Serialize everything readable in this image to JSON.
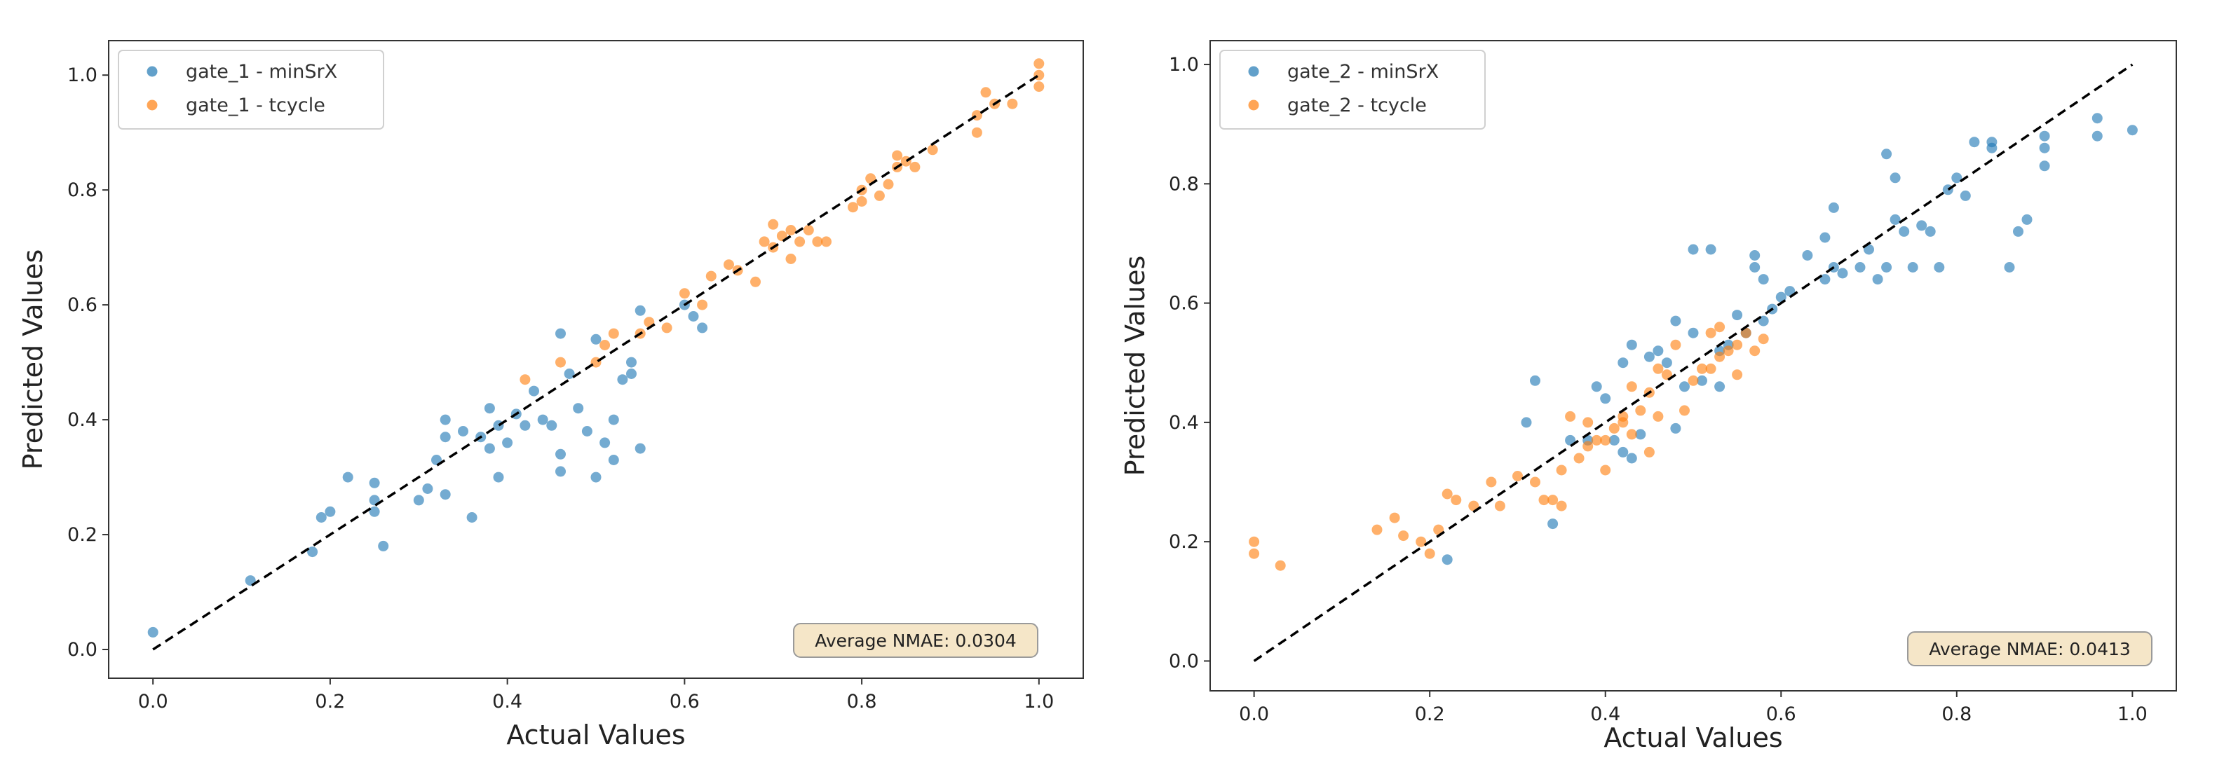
{
  "chart_data": [
    {
      "type": "scatter",
      "xlabel": "Actual Values",
      "ylabel": "Predicted Values",
      "xlim": [
        -0.05,
        1.05
      ],
      "ylim": [
        -0.05,
        1.06
      ],
      "xticks": [
        "0.0",
        "0.2",
        "0.4",
        "0.6",
        "0.8",
        "1.0"
      ],
      "yticks": [
        "0.0",
        "0.2",
        "0.4",
        "0.6",
        "0.8",
        "1.0"
      ],
      "grid": false,
      "legend": "top-left",
      "reference_line": {
        "style": "dashed",
        "color": "#000000",
        "from": [
          0,
          0
        ],
        "to": [
          1,
          1
        ]
      },
      "annotation": "Average NMAE: 0.0304",
      "series": [
        {
          "name": "gate_1 - minSrX",
          "color": "#1f77b4",
          "points": [
            [
              0.0,
              0.03
            ],
            [
              0.11,
              0.12
            ],
            [
              0.18,
              0.17
            ],
            [
              0.19,
              0.23
            ],
            [
              0.2,
              0.24
            ],
            [
              0.22,
              0.3
            ],
            [
              0.25,
              0.29
            ],
            [
              0.25,
              0.26
            ],
            [
              0.25,
              0.24
            ],
            [
              0.26,
              0.18
            ],
            [
              0.3,
              0.26
            ],
            [
              0.31,
              0.28
            ],
            [
              0.32,
              0.33
            ],
            [
              0.33,
              0.4
            ],
            [
              0.33,
              0.37
            ],
            [
              0.33,
              0.27
            ],
            [
              0.35,
              0.38
            ],
            [
              0.36,
              0.23
            ],
            [
              0.37,
              0.37
            ],
            [
              0.38,
              0.35
            ],
            [
              0.38,
              0.42
            ],
            [
              0.39,
              0.3
            ],
            [
              0.39,
              0.39
            ],
            [
              0.4,
              0.36
            ],
            [
              0.41,
              0.41
            ],
            [
              0.42,
              0.39
            ],
            [
              0.43,
              0.45
            ],
            [
              0.44,
              0.4
            ],
            [
              0.45,
              0.39
            ],
            [
              0.46,
              0.34
            ],
            [
              0.46,
              0.31
            ],
            [
              0.46,
              0.55
            ],
            [
              0.47,
              0.48
            ],
            [
              0.48,
              0.42
            ],
            [
              0.49,
              0.38
            ],
            [
              0.5,
              0.3
            ],
            [
              0.5,
              0.54
            ],
            [
              0.51,
              0.36
            ],
            [
              0.52,
              0.4
            ],
            [
              0.52,
              0.33
            ],
            [
              0.53,
              0.47
            ],
            [
              0.54,
              0.5
            ],
            [
              0.54,
              0.48
            ],
            [
              0.55,
              0.35
            ],
            [
              0.55,
              0.59
            ],
            [
              0.6,
              0.6
            ],
            [
              0.61,
              0.58
            ],
            [
              0.62,
              0.56
            ]
          ]
        },
        {
          "name": "gate_1 - tcycle",
          "color": "#ff7f0e",
          "points": [
            [
              0.42,
              0.47
            ],
            [
              0.46,
              0.5
            ],
            [
              0.5,
              0.5
            ],
            [
              0.51,
              0.53
            ],
            [
              0.52,
              0.55
            ],
            [
              0.55,
              0.55
            ],
            [
              0.56,
              0.57
            ],
            [
              0.58,
              0.56
            ],
            [
              0.6,
              0.62
            ],
            [
              0.62,
              0.6
            ],
            [
              0.63,
              0.65
            ],
            [
              0.65,
              0.67
            ],
            [
              0.66,
              0.66
            ],
            [
              0.68,
              0.64
            ],
            [
              0.69,
              0.71
            ],
            [
              0.7,
              0.7
            ],
            [
              0.7,
              0.74
            ],
            [
              0.71,
              0.72
            ],
            [
              0.72,
              0.68
            ],
            [
              0.72,
              0.73
            ],
            [
              0.73,
              0.71
            ],
            [
              0.74,
              0.73
            ],
            [
              0.75,
              0.71
            ],
            [
              0.76,
              0.71
            ],
            [
              0.79,
              0.77
            ],
            [
              0.8,
              0.8
            ],
            [
              0.8,
              0.78
            ],
            [
              0.81,
              0.82
            ],
            [
              0.82,
              0.79
            ],
            [
              0.83,
              0.81
            ],
            [
              0.84,
              0.86
            ],
            [
              0.84,
              0.84
            ],
            [
              0.85,
              0.85
            ],
            [
              0.86,
              0.84
            ],
            [
              0.88,
              0.87
            ],
            [
              0.93,
              0.9
            ],
            [
              0.93,
              0.93
            ],
            [
              0.94,
              0.97
            ],
            [
              0.95,
              0.95
            ],
            [
              0.97,
              0.95
            ],
            [
              1.0,
              1.02
            ],
            [
              1.0,
              0.98
            ],
            [
              1.0,
              1.0
            ]
          ]
        }
      ]
    },
    {
      "type": "scatter",
      "xlabel": "Actual Values",
      "ylabel": "Predicted Values",
      "xlim": [
        -0.05,
        1.05
      ],
      "ylim": [
        -0.05,
        1.04
      ],
      "xticks": [
        "0.0",
        "0.2",
        "0.4",
        "0.6",
        "0.8",
        "1.0"
      ],
      "yticks": [
        "0.0",
        "0.2",
        "0.4",
        "0.6",
        "0.8",
        "1.0"
      ],
      "grid": false,
      "legend": "top-left",
      "reference_line": {
        "style": "dashed",
        "color": "#000000",
        "from": [
          0,
          0
        ],
        "to": [
          1,
          1
        ]
      },
      "annotation": "Average NMAE: 0.0413",
      "series": [
        {
          "name": "gate_2 - minSrX",
          "color": "#1f77b4",
          "points": [
            [
              0.22,
              0.17
            ],
            [
              0.31,
              0.4
            ],
            [
              0.32,
              0.47
            ],
            [
              0.34,
              0.23
            ],
            [
              0.36,
              0.37
            ],
            [
              0.38,
              0.37
            ],
            [
              0.39,
              0.46
            ],
            [
              0.4,
              0.44
            ],
            [
              0.41,
              0.37
            ],
            [
              0.42,
              0.5
            ],
            [
              0.42,
              0.35
            ],
            [
              0.43,
              0.53
            ],
            [
              0.43,
              0.34
            ],
            [
              0.44,
              0.38
            ],
            [
              0.45,
              0.51
            ],
            [
              0.46,
              0.52
            ],
            [
              0.47,
              0.5
            ],
            [
              0.48,
              0.57
            ],
            [
              0.48,
              0.39
            ],
            [
              0.49,
              0.46
            ],
            [
              0.5,
              0.69
            ],
            [
              0.5,
              0.55
            ],
            [
              0.51,
              0.47
            ],
            [
              0.52,
              0.69
            ],
            [
              0.53,
              0.52
            ],
            [
              0.53,
              0.46
            ],
            [
              0.54,
              0.53
            ],
            [
              0.55,
              0.58
            ],
            [
              0.56,
              0.55
            ],
            [
              0.57,
              0.66
            ],
            [
              0.57,
              0.68
            ],
            [
              0.58,
              0.64
            ],
            [
              0.58,
              0.57
            ],
            [
              0.59,
              0.59
            ],
            [
              0.6,
              0.61
            ],
            [
              0.61,
              0.62
            ],
            [
              0.63,
              0.68
            ],
            [
              0.65,
              0.71
            ],
            [
              0.65,
              0.64
            ],
            [
              0.66,
              0.76
            ],
            [
              0.66,
              0.66
            ],
            [
              0.67,
              0.65
            ],
            [
              0.69,
              0.66
            ],
            [
              0.7,
              0.69
            ],
            [
              0.71,
              0.64
            ],
            [
              0.72,
              0.66
            ],
            [
              0.72,
              0.85
            ],
            [
              0.73,
              0.81
            ],
            [
              0.73,
              0.74
            ],
            [
              0.74,
              0.72
            ],
            [
              0.75,
              0.66
            ],
            [
              0.76,
              0.73
            ],
            [
              0.77,
              0.72
            ],
            [
              0.78,
              0.66
            ],
            [
              0.79,
              0.79
            ],
            [
              0.8,
              0.81
            ],
            [
              0.81,
              0.78
            ],
            [
              0.82,
              0.87
            ],
            [
              0.84,
              0.87
            ],
            [
              0.84,
              0.86
            ],
            [
              0.86,
              0.66
            ],
            [
              0.87,
              0.72
            ],
            [
              0.88,
              0.74
            ],
            [
              0.9,
              0.83
            ],
            [
              0.9,
              0.86
            ],
            [
              0.9,
              0.88
            ],
            [
              0.96,
              0.88
            ],
            [
              0.96,
              0.91
            ],
            [
              1.0,
              0.89
            ]
          ]
        },
        {
          "name": "gate_2 - tcycle",
          "color": "#ff7f0e",
          "points": [
            [
              0.0,
              0.2
            ],
            [
              0.0,
              0.18
            ],
            [
              0.03,
              0.16
            ],
            [
              0.14,
              0.22
            ],
            [
              0.16,
              0.24
            ],
            [
              0.17,
              0.21
            ],
            [
              0.19,
              0.2
            ],
            [
              0.2,
              0.18
            ],
            [
              0.21,
              0.22
            ],
            [
              0.22,
              0.28
            ],
            [
              0.23,
              0.27
            ],
            [
              0.25,
              0.26
            ],
            [
              0.27,
              0.3
            ],
            [
              0.28,
              0.26
            ],
            [
              0.3,
              0.31
            ],
            [
              0.32,
              0.3
            ],
            [
              0.33,
              0.27
            ],
            [
              0.34,
              0.27
            ],
            [
              0.35,
              0.26
            ],
            [
              0.35,
              0.32
            ],
            [
              0.36,
              0.41
            ],
            [
              0.37,
              0.34
            ],
            [
              0.38,
              0.36
            ],
            [
              0.38,
              0.4
            ],
            [
              0.39,
              0.37
            ],
            [
              0.4,
              0.32
            ],
            [
              0.4,
              0.37
            ],
            [
              0.41,
              0.39
            ],
            [
              0.42,
              0.4
            ],
            [
              0.42,
              0.41
            ],
            [
              0.43,
              0.38
            ],
            [
              0.43,
              0.46
            ],
            [
              0.44,
              0.42
            ],
            [
              0.45,
              0.35
            ],
            [
              0.45,
              0.45
            ],
            [
              0.46,
              0.41
            ],
            [
              0.46,
              0.49
            ],
            [
              0.47,
              0.48
            ],
            [
              0.48,
              0.53
            ],
            [
              0.49,
              0.42
            ],
            [
              0.5,
              0.47
            ],
            [
              0.51,
              0.49
            ],
            [
              0.52,
              0.49
            ],
            [
              0.52,
              0.55
            ],
            [
              0.53,
              0.51
            ],
            [
              0.53,
              0.56
            ],
            [
              0.54,
              0.52
            ],
            [
              0.55,
              0.53
            ],
            [
              0.55,
              0.48
            ],
            [
              0.56,
              0.55
            ],
            [
              0.57,
              0.52
            ],
            [
              0.58,
              0.54
            ]
          ]
        }
      ]
    }
  ]
}
